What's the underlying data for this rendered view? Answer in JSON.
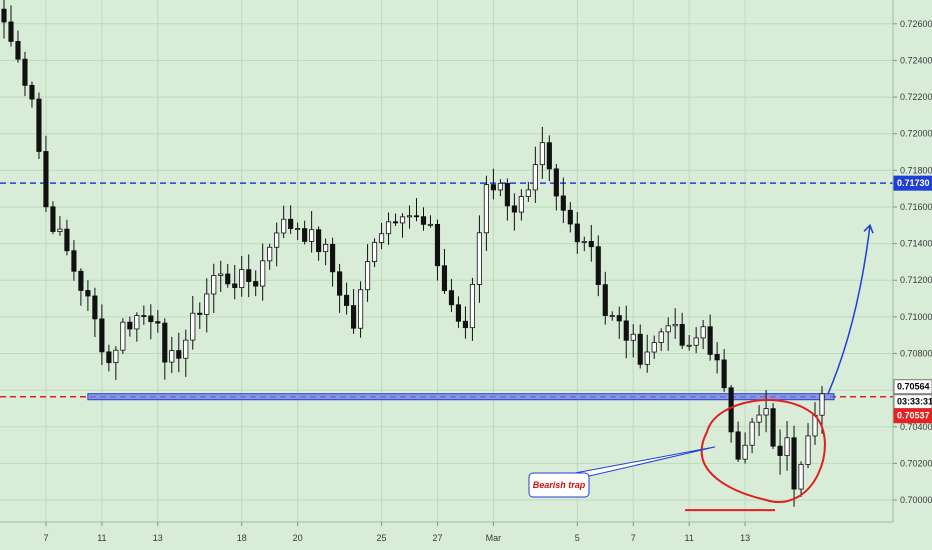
{
  "chart_data": {
    "type": "candlestick",
    "title": "",
    "xlabel": "",
    "ylabel": "",
    "ylim": [
      0.6988,
      0.7273
    ],
    "grid": true,
    "y_ticks": [
      "0.72600",
      "0.72400",
      "0.72200",
      "0.72000",
      "0.71800",
      "0.71600",
      "0.71400",
      "0.71200",
      "0.71000",
      "0.70800",
      "0.70600",
      "0.70400",
      "0.70200",
      "0.70000"
    ],
    "x_ticks": [
      {
        "label": "7",
        "index": 6
      },
      {
        "label": "11",
        "index": 14
      },
      {
        "label": "13",
        "index": 22
      },
      {
        "label": "18",
        "index": 34
      },
      {
        "label": "20",
        "index": 42
      },
      {
        "label": "25",
        "index": 54
      },
      {
        "label": "27",
        "index": 62
      },
      {
        "label": "Mar",
        "index": 70
      },
      {
        "label": "5",
        "index": 82
      },
      {
        "label": "7",
        "index": 90
      },
      {
        "label": "11",
        "index": 98
      },
      {
        "label": "13",
        "index": 106
      }
    ],
    "n_slots": 118,
    "ohlc": [],
    "levels": [
      {
        "name": "resistance",
        "value": 0.7173,
        "color": "#1f3fd8",
        "style": "dashed",
        "tag": "0.71730"
      },
      {
        "name": "support",
        "value": 0.70564,
        "color": "#e02020",
        "style": "dashed",
        "tag": "0.70564"
      }
    ],
    "price_tags": [
      {
        "label": "0.70564",
        "color": "#ffffff",
        "text_color": "#000000"
      },
      {
        "label": "03:33:31",
        "color": "#ffffff",
        "text_color": "#000000"
      },
      {
        "label": "0.70537",
        "color": "#e52222",
        "text_color": "#ffffff"
      }
    ],
    "annotations": [
      {
        "type": "text",
        "text": "Bearish trap",
        "color": "#d01010"
      }
    ],
    "colors": {
      "bull": "#ffffff",
      "bear": "#111111",
      "wick": "#111111",
      "accent_blue": "#1f3fd8",
      "accent_red": "#e02020",
      "background": "#d8ecd8",
      "grid": "#bddbbd"
    }
  }
}
